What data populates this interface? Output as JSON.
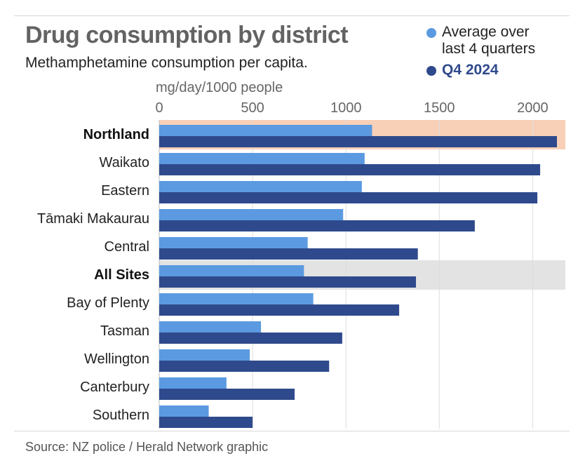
{
  "chart_data": {
    "type": "bar",
    "orientation": "horizontal",
    "title": "Drug consumption by district",
    "subtitle": "Methamphetamine consumption per capita.",
    "xlabel": "mg/day/1000 people",
    "ylabel": "",
    "xlim": [
      0,
      2175
    ],
    "ticks": [
      0,
      500,
      1000,
      1500,
      2000
    ],
    "tick_labels": [
      "0",
      "500",
      "1000",
      "1500",
      "2000"
    ],
    "categories": [
      "Northland",
      "Waikato",
      "Eastern",
      "Tāmaki Makaurau",
      "Central",
      "All Sites",
      "Bay of Plenty",
      "Tasman",
      "Wellington",
      "Canterbury",
      "Southern"
    ],
    "highlighted": {
      "Northland": "#f8d0b8",
      "All Sites": "#e3e3e3"
    },
    "emphasized_categories": [
      "Northland",
      "All Sites"
    ],
    "series": [
      {
        "name": "Average over last 4 quarters",
        "color": "#5b9ae0",
        "values": [
          1140,
          1100,
          1085,
          985,
          795,
          775,
          825,
          545,
          485,
          360,
          265
        ]
      },
      {
        "name": "Q4 2024",
        "color": "#2f4a8c",
        "values": [
          2130,
          2040,
          2025,
          1690,
          1385,
          1375,
          1285,
          980,
          910,
          725,
          500
        ]
      }
    ],
    "grid": true,
    "legend_position": "top-right"
  },
  "legend": {
    "average_label": "Average over\nlast 4 quarters",
    "current_label": "Q4 2024",
    "average_icon": "circle-dot-icon",
    "current_icon": "circle-dot-icon"
  },
  "source": "Source: NZ police / Herald Network graphic"
}
